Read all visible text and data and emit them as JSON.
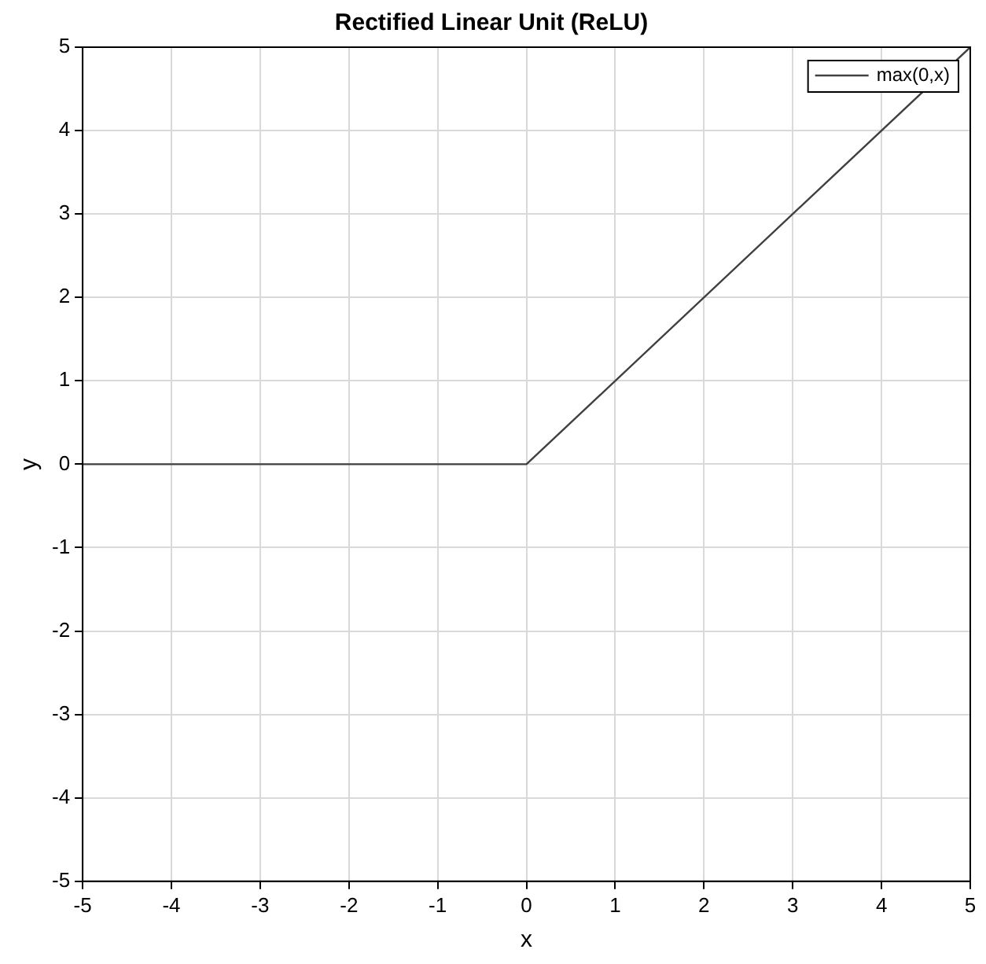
{
  "chart_data": {
    "type": "line",
    "title": "Rectified Linear Unit (ReLU)",
    "xlabel": "x",
    "ylabel": "y",
    "x": [
      -5,
      0,
      5
    ],
    "series": [
      {
        "name": "max(0,x)",
        "color": "#404040",
        "values": [
          0,
          0,
          5
        ]
      }
    ],
    "xlim": [
      -5,
      5
    ],
    "xticks": [
      -5,
      -4,
      -3,
      -2,
      -1,
      0,
      1,
      2,
      3,
      4,
      5
    ],
    "ylim": [
      -5,
      5
    ],
    "yticks": [
      -5,
      -4,
      -3,
      -2,
      -1,
      0,
      1,
      2,
      3,
      4,
      5
    ],
    "grid": true,
    "legend": "top right",
    "marker": "none",
    "line_style": "solid"
  }
}
